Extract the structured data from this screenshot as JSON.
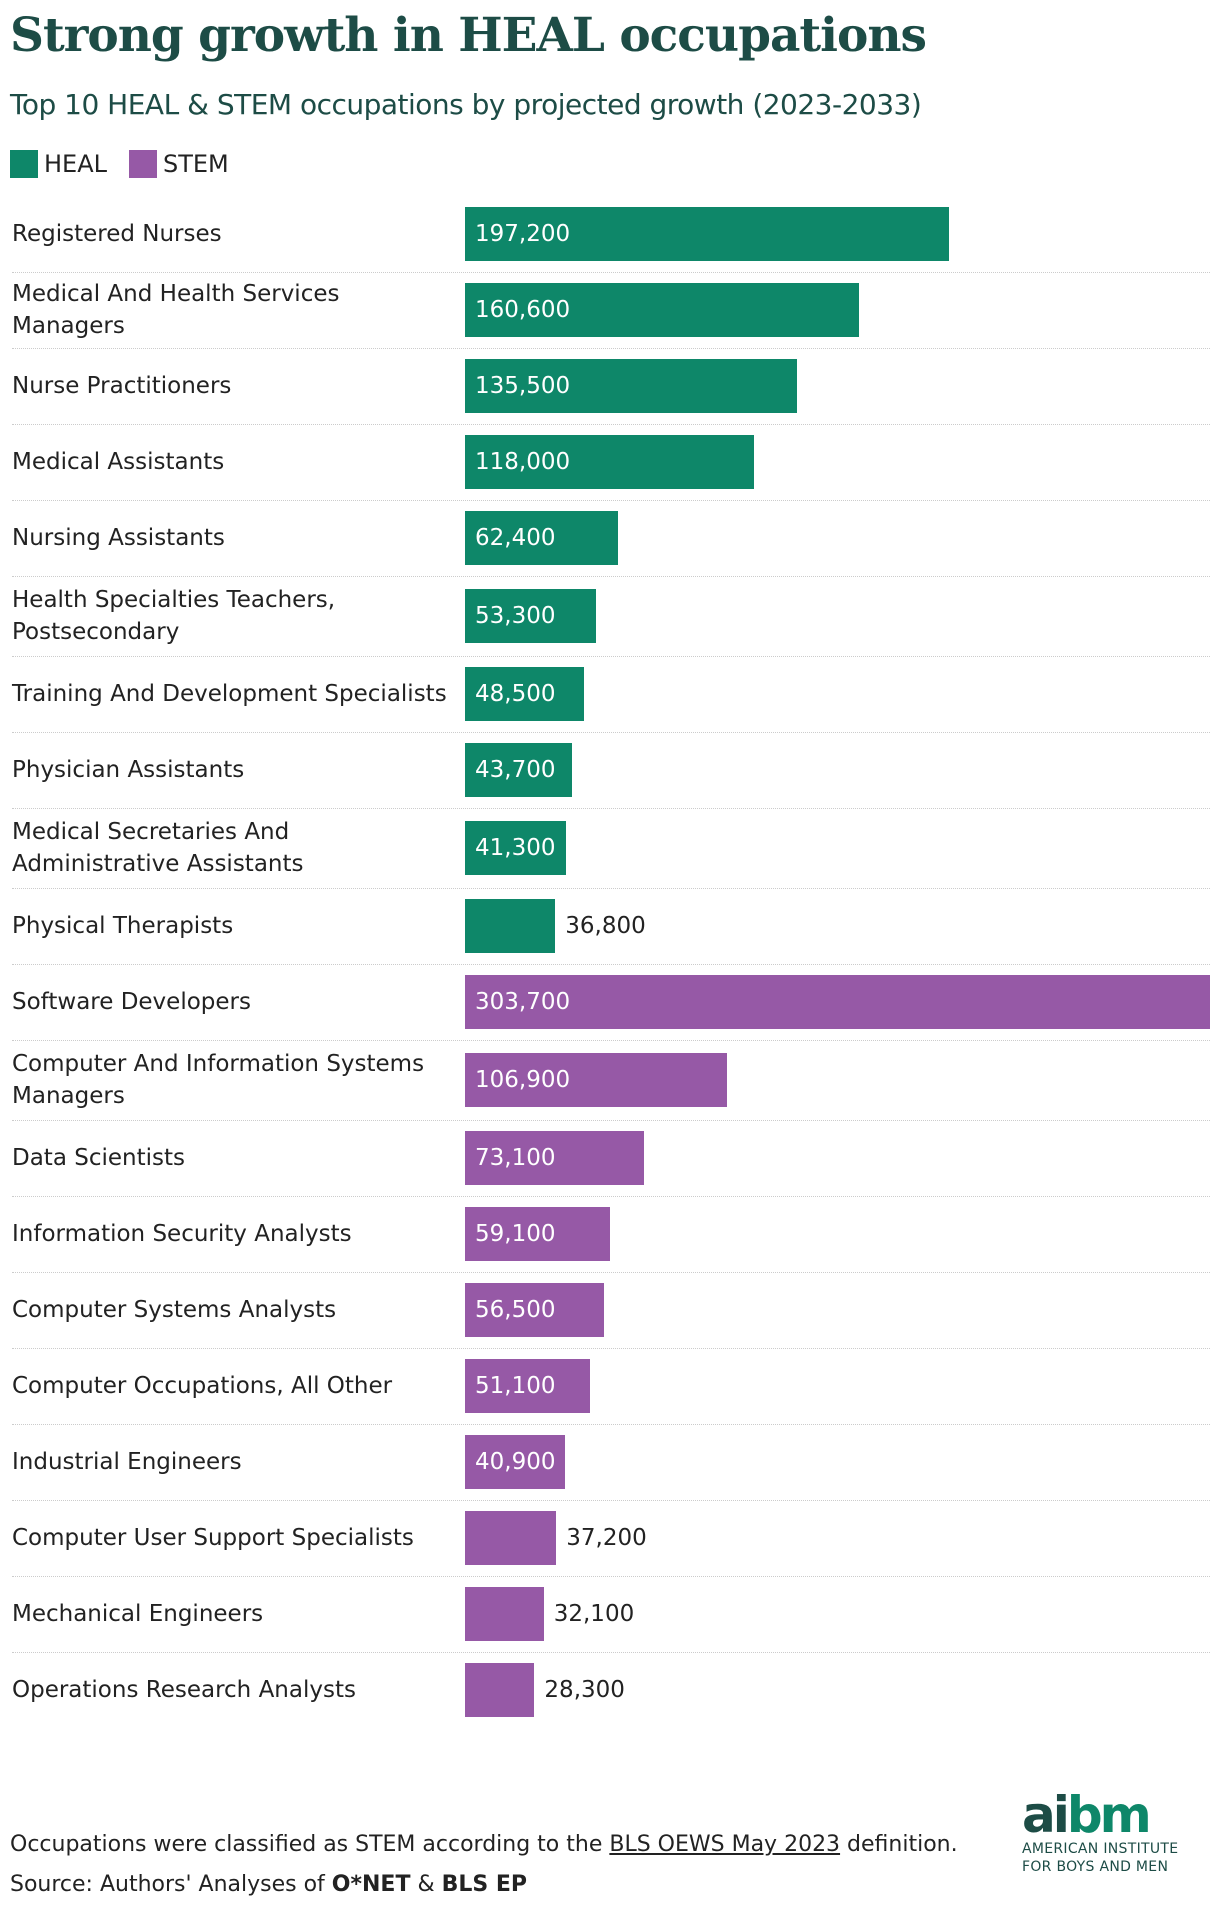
{
  "colors": {
    "HEAL": "#0e8769",
    "STEM": "#9659a6",
    "title": "#1d4c46"
  },
  "chart_data": {
    "type": "bar",
    "orientation": "horizontal",
    "title": "Strong growth in HEAL occupations",
    "subtitle": "Top 10 HEAL & STEM occupations by projected growth (2023-2033)",
    "legend": [
      {
        "name": "HEAL",
        "color": "#0e8769"
      },
      {
        "name": "STEM",
        "color": "#9659a6"
      }
    ],
    "legend_placement": "top-left",
    "grid": false,
    "xlim": [
      0,
      303700
    ],
    "rows": [
      {
        "category": "Registered Nurses",
        "group": "HEAL",
        "value": 197200,
        "label": "197,200"
      },
      {
        "category": "Medical And Health Services Managers",
        "group": "HEAL",
        "value": 160600,
        "label": "160,600"
      },
      {
        "category": "Nurse Practitioners",
        "group": "HEAL",
        "value": 135500,
        "label": "135,500"
      },
      {
        "category": "Medical Assistants",
        "group": "HEAL",
        "value": 118000,
        "label": "118,000"
      },
      {
        "category": "Nursing Assistants",
        "group": "HEAL",
        "value": 62400,
        "label": "62,400"
      },
      {
        "category": "Health Specialties Teachers, Postsecondary",
        "group": "HEAL",
        "value": 53300,
        "label": "53,300"
      },
      {
        "category": "Training And Development Specialists",
        "group": "HEAL",
        "value": 48500,
        "label": "48,500"
      },
      {
        "category": "Physician Assistants",
        "group": "HEAL",
        "value": 43700,
        "label": "43,700"
      },
      {
        "category": "Medical Secretaries And Administrative Assistants",
        "group": "HEAL",
        "value": 41300,
        "label": "41,300"
      },
      {
        "category": "Physical Therapists",
        "group": "HEAL",
        "value": 36800,
        "label": "36,800"
      },
      {
        "category": "Software Developers",
        "group": "STEM",
        "value": 303700,
        "label": "303,700"
      },
      {
        "category": "Computer And Information Systems Managers",
        "group": "STEM",
        "value": 106900,
        "label": "106,900"
      },
      {
        "category": "Data Scientists",
        "group": "STEM",
        "value": 73100,
        "label": "73,100"
      },
      {
        "category": "Information Security Analysts",
        "group": "STEM",
        "value": 59100,
        "label": "59,100"
      },
      {
        "category": "Computer Systems Analysts",
        "group": "STEM",
        "value": 56500,
        "label": "56,500"
      },
      {
        "category": "Computer Occupations, All Other",
        "group": "STEM",
        "value": 51100,
        "label": "51,100"
      },
      {
        "category": "Industrial Engineers",
        "group": "STEM",
        "value": 40900,
        "label": "40,900"
      },
      {
        "category": "Computer User Support Specialists",
        "group": "STEM",
        "value": 37200,
        "label": "37,200"
      },
      {
        "category": "Mechanical Engineers",
        "group": "STEM",
        "value": 32100,
        "label": "32,100"
      },
      {
        "category": "Operations Research Analysts",
        "group": "STEM",
        "value": 28300,
        "label": "28,300"
      }
    ]
  },
  "footer": {
    "note_before": "Occupations were classified as STEM according to the ",
    "note_link": "BLS OEWS May 2023",
    "note_after": " definition.",
    "source_prefix": "Source: Authors' Analyses of ",
    "source_a": "O*NET",
    "source_amp": " & ",
    "source_b": "BLS EP"
  },
  "logo": {
    "mark_a": "ai",
    "mark_b": "bm",
    "line1": "AMERICAN INSTITUTE",
    "line2": "FOR BOYS AND MEN"
  }
}
